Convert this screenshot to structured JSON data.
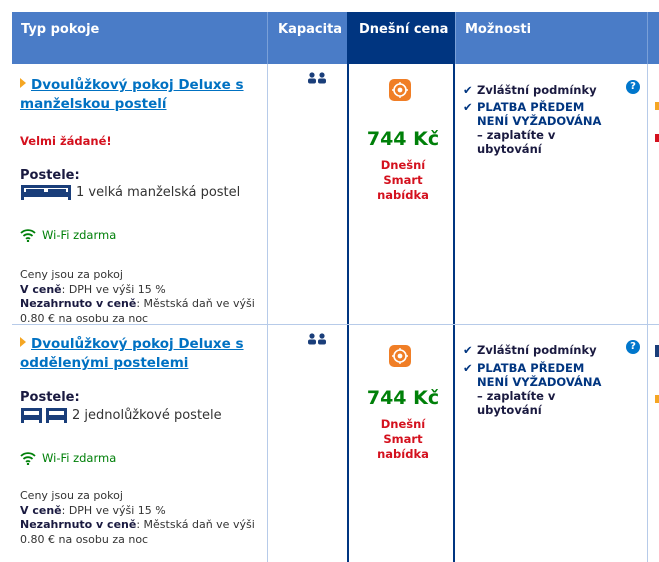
{
  "header": {
    "room_type": "Typ pokoje",
    "capacity": "Kapacita",
    "todays_price": "Dnešní cena",
    "options": "Možnosti"
  },
  "rooms": [
    {
      "name_line1": "Dvoulůžkový pokoj Deluxe s",
      "name_line2": "manželskou postelí",
      "demand": "Velmi žádané!",
      "beds_label": "Postele:",
      "bed_desc": "1 velká manželská postel",
      "wifi": "Wi-Fi zdarma",
      "fine1": "Ceny jsou za pokoj",
      "included_label": "V ceně",
      "included_value": ": DPH ve výši 15 %",
      "excluded_label": "Nezahrnuto v ceně",
      "excluded_value": ": Městská daň ve výši",
      "excluded_value2": "0.80 € na osobu za noc",
      "price": "744 Kč",
      "offer_line1": "Dnešní",
      "offer_line2": "Smart nabídka",
      "cond": "Zvláštní podmínky",
      "pay1": "PLATBA PŘEDEM",
      "pay2": "NENÍ VYŽADOVÁNA",
      "pay3": "– zaplatíte v",
      "pay4": "ubytování",
      "help": "?"
    },
    {
      "name_line1": "Dvoulůžkový pokoj Deluxe s",
      "name_line2": "oddělenými postelemi",
      "beds_label": "Postele:",
      "bed_desc": "2 jednolůžkové postele",
      "wifi": "Wi-Fi zdarma",
      "fine1": "Ceny jsou za pokoj",
      "included_label": "V ceně",
      "included_value": ": DPH ve výši 15 %",
      "excluded_label": "Nezahrnuto v ceně",
      "excluded_value": ": Městská daň ve výši",
      "excluded_value2": "0.80 € na osobu za noc",
      "price": "744 Kč",
      "offer_line1": "Dnešní",
      "offer_line2": "Smart nabídka",
      "cond": "Zvláštní podmínky",
      "pay1": "PLATBA PŘEDEM",
      "pay2": "NENÍ VYŽADOVÁNA",
      "pay3": "– zaplatíte v",
      "pay4": "ubytování",
      "help": "?"
    }
  ],
  "icons": {
    "capacity": "two-persons-icon",
    "smart_offer": "smart-offer-icon",
    "wifi": "wifi-icon",
    "check": "checkmark-icon",
    "help": "question-mark-icon"
  },
  "colors": {
    "header_bg": "#4a7cc7",
    "price_header_bg": "#003580",
    "link": "#0071c2",
    "price": "#008009",
    "alert": "#d4111e",
    "smart_icon": "#f07e26"
  }
}
